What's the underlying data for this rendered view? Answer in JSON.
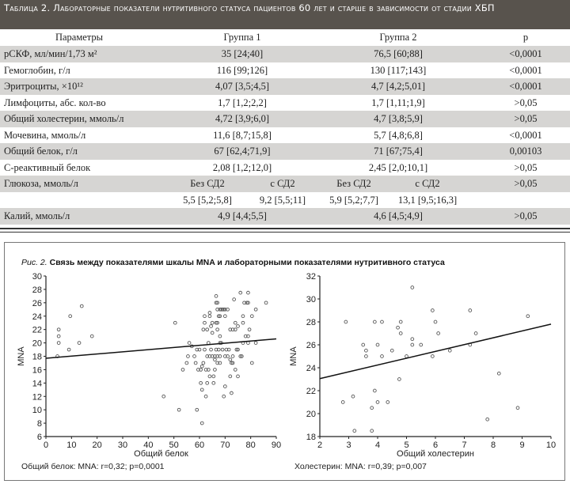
{
  "table": {
    "title": "Таблица 2. Лабораторные показатели нутритивного статуса пациентов 60 лет и старше в зависимости от стадии ХБП",
    "headers": [
      "Параметры",
      "Группа 1",
      "Группа 2",
      "p"
    ],
    "rows": [
      {
        "param": "рСКФ, мл/мин/1,73 м²",
        "g1": "35  [24;40]",
        "g2": "76,5  [60;88]",
        "p": "<0,0001"
      },
      {
        "param": "Гемоглобин, г/л",
        "g1": "116  [99;126]",
        "g2": "130  [117;143]",
        "p": "<0,0001"
      },
      {
        "param": "Эритроциты, ×10¹²",
        "g1": "4,07  [3,5;4,5]",
        "g2": "4,7  [4,2;5,01]",
        "p": "<0,0001"
      },
      {
        "param": "Лимфоциты, абс. кол-во",
        "g1": "1,7  [1,2;2,2]",
        "g2": "1,7  [1,11;1,9]",
        "p": ">0,05"
      },
      {
        "param": "Общий холестерин, ммоль/л",
        "g1": "4,72  [3,9;6,0]",
        "g2": "4,7  [3,8;5,9]",
        "p": ">0,05"
      },
      {
        "param": "Мочевина, ммоль/л",
        "g1": "11,6  [8,7;15,8]",
        "g2": "5,7  [4,8;6,8]",
        "p": "<0,0001"
      },
      {
        "param": "Общий белок, г/л",
        "g1": "67  [62,4;71,9]",
        "g2": "71  [67;75,4]",
        "p": "0,00103"
      },
      {
        "param": "С-реактивный белок",
        "g1": "2,08  [1,2;12,0]",
        "g2": "2,45  [2,0;10,1]",
        "p": ">0,05"
      }
    ],
    "glucose": {
      "param": "Глюкоза, ммоль/л",
      "sub": [
        "Без СД2",
        "с СД2",
        "Без СД2",
        "с СД2"
      ],
      "values": [
        "5,5  [5,2;5,8]",
        "9,2  [5,5;11]",
        "5,9  [5,2;7,7]",
        "13,1  [9,5;16,3]"
      ],
      "p": ">0,05"
    },
    "potassium": {
      "param": "Калий, ммоль/л",
      "g1": "4,9  [4,4;5,5]",
      "g2": "4,6  [4,5;4,9]",
      "p": ">0,05"
    }
  },
  "figure": {
    "label": "Рис. 2.",
    "caption": "Связь между показателями шкалы MNA и лабораторными показателями нутритивного статуса"
  },
  "chart_data": [
    {
      "type": "scatter",
      "xlabel": "Общий белок",
      "ylabel": "MNA",
      "xlim": [
        0,
        90
      ],
      "ylim": [
        6,
        30
      ],
      "xticks": [
        "0",
        "10",
        "20",
        "30",
        "40",
        "50",
        "60",
        "70",
        "80",
        "90"
      ],
      "yticks": [
        "6",
        "8",
        "10",
        "12",
        "14",
        "16",
        "18",
        "20",
        "22",
        "24",
        "26",
        "28",
        "30"
      ],
      "grid": false,
      "annotation": "Общий белок: MNA: r=0,32; p=0,0001",
      "regression": [
        [
          0,
          17.7
        ],
        [
          90,
          20.6
        ]
      ],
      "points": [
        [
          5,
          22
        ],
        [
          5,
          21
        ],
        [
          5,
          20
        ],
        [
          4.5,
          18
        ],
        [
          9,
          19
        ],
        [
          9.5,
          24
        ],
        [
          13,
          20
        ],
        [
          14,
          25.5
        ],
        [
          18,
          21
        ],
        [
          46,
          12
        ],
        [
          50.5,
          23
        ],
        [
          52,
          10
        ],
        [
          53.5,
          16
        ],
        [
          55,
          17
        ],
        [
          55.5,
          18
        ],
        [
          56,
          20
        ],
        [
          57,
          19.5
        ],
        [
          58,
          18
        ],
        [
          58.5,
          17
        ],
        [
          59,
          10
        ],
        [
          59,
          19
        ],
        [
          59.5,
          16
        ],
        [
          60,
          19
        ],
        [
          60.5,
          14
        ],
        [
          60.5,
          16
        ],
        [
          61,
          13
        ],
        [
          61,
          16.5
        ],
        [
          61,
          8
        ],
        [
          61.5,
          17
        ],
        [
          61.5,
          22
        ],
        [
          62,
          23
        ],
        [
          62,
          24
        ],
        [
          62,
          19
        ],
        [
          62.5,
          16
        ],
        [
          62.5,
          12
        ],
        [
          63,
          22
        ],
        [
          63,
          18
        ],
        [
          63,
          14
        ],
        [
          63.5,
          20
        ],
        [
          63.5,
          16
        ],
        [
          64,
          15
        ],
        [
          64,
          18
        ],
        [
          64,
          24.5
        ],
        [
          64,
          24
        ],
        [
          64.5,
          22.5
        ],
        [
          64.5,
          19
        ],
        [
          65,
          23
        ],
        [
          65,
          21.5
        ],
        [
          65,
          18
        ],
        [
          65.5,
          15
        ],
        [
          65.5,
          14
        ],
        [
          66,
          16
        ],
        [
          66,
          17.5
        ],
        [
          66,
          18
        ],
        [
          66.5,
          27
        ],
        [
          66.5,
          26
        ],
        [
          66.5,
          23
        ],
        [
          66.5,
          19
        ],
        [
          67,
          18
        ],
        [
          67,
          17
        ],
        [
          67,
          26
        ],
        [
          67,
          23
        ],
        [
          67,
          22
        ],
        [
          67,
          25
        ],
        [
          67.5,
          24
        ],
        [
          67.5,
          19
        ],
        [
          68,
          25
        ],
        [
          68,
          24
        ],
        [
          68,
          21
        ],
        [
          68,
          20
        ],
        [
          68,
          18
        ],
        [
          68,
          17
        ],
        [
          68.5,
          25
        ],
        [
          68.5,
          20
        ],
        [
          69,
          25
        ],
        [
          69,
          19
        ],
        [
          69.5,
          25
        ],
        [
          69.5,
          12
        ],
        [
          70,
          24
        ],
        [
          70,
          25
        ],
        [
          70,
          13.5
        ],
        [
          70,
          18
        ],
        [
          70.5,
          19
        ],
        [
          71,
          25
        ],
        [
          71,
          18
        ],
        [
          71.5,
          19
        ],
        [
          72,
          22
        ],
        [
          72,
          17.5
        ],
        [
          72,
          15
        ],
        [
          72.5,
          17
        ],
        [
          72.5,
          12.5
        ],
        [
          73,
          22
        ],
        [
          73,
          18
        ],
        [
          73,
          17
        ],
        [
          73.5,
          26.5
        ],
        [
          74,
          23
        ],
        [
          74,
          22
        ],
        [
          74,
          16
        ],
        [
          74.5,
          19
        ],
        [
          75,
          22.5
        ],
        [
          75,
          15
        ],
        [
          75,
          19
        ],
        [
          76,
          27.5
        ],
        [
          76,
          18
        ],
        [
          76.5,
          18
        ],
        [
          77,
          23
        ],
        [
          77,
          24
        ],
        [
          77,
          20
        ],
        [
          77.5,
          26
        ],
        [
          78,
          21
        ],
        [
          78.5,
          26
        ],
        [
          79,
          27.5
        ],
        [
          79,
          26
        ],
        [
          79,
          21
        ],
        [
          79,
          20
        ],
        [
          79.5,
          22
        ],
        [
          80.5,
          24
        ],
        [
          80.5,
          17
        ],
        [
          82,
          20
        ],
        [
          82,
          25
        ],
        [
          86,
          26
        ]
      ]
    },
    {
      "type": "scatter",
      "xlabel": "Общий холестерин",
      "ylabel": "MNA",
      "xlim": [
        2,
        10
      ],
      "ylim": [
        18,
        32
      ],
      "xticks": [
        "2",
        "3",
        "4",
        "5",
        "6",
        "7",
        "8",
        "9",
        "10"
      ],
      "yticks": [
        "18",
        "20",
        "22",
        "24",
        "26",
        "28",
        "30",
        "32"
      ],
      "grid": false,
      "annotation": "Холестерин: MNA: r=0,39; p=0,007",
      "regression": [
        [
          2,
          23.05
        ],
        [
          10,
          27.8
        ]
      ],
      "points": [
        [
          2.8,
          21
        ],
        [
          2.9,
          28
        ],
        [
          3.15,
          21.5
        ],
        [
          3.2,
          18.5
        ],
        [
          3.5,
          26
        ],
        [
          3.6,
          25.5
        ],
        [
          3.6,
          25
        ],
        [
          3.8,
          20.5
        ],
        [
          3.8,
          18.5
        ],
        [
          3.9,
          22
        ],
        [
          3.9,
          28
        ],
        [
          4,
          26
        ],
        [
          4,
          21
        ],
        [
          4.15,
          28
        ],
        [
          4.15,
          25
        ],
        [
          4.35,
          21
        ],
        [
          4.5,
          25.5
        ],
        [
          4.7,
          27.5
        ],
        [
          4.75,
          23
        ],
        [
          4.8,
          28
        ],
        [
          4.8,
          27
        ],
        [
          5,
          25
        ],
        [
          5.2,
          31
        ],
        [
          5.2,
          26.5
        ],
        [
          5.2,
          26
        ],
        [
          5.5,
          26
        ],
        [
          5.9,
          29
        ],
        [
          5.9,
          25
        ],
        [
          6,
          28
        ],
        [
          6.1,
          27
        ],
        [
          6.5,
          25.5
        ],
        [
          7.2,
          29
        ],
        [
          7.2,
          26
        ],
        [
          7.4,
          27
        ],
        [
          7.8,
          19.5
        ],
        [
          8.2,
          23.5
        ],
        [
          8.85,
          20.5
        ],
        [
          9.2,
          28.5
        ]
      ]
    }
  ]
}
